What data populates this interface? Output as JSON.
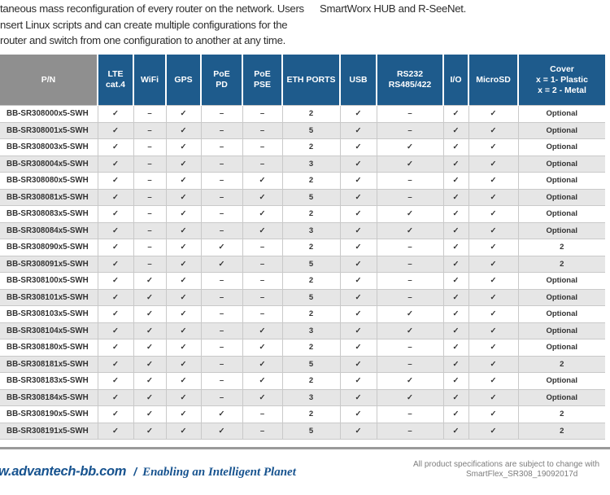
{
  "colors": {
    "header_blue": "#1e5b8c",
    "header_gray": "#8f8f8f",
    "footer_blue": "#17538f",
    "zebra_gray": "#e6e6e6"
  },
  "intro": {
    "left_lines": [
      "taneous mass reconfiguration of every router on the network. Users",
      "nsert Linux scripts and can create multiple configurations for the",
      "router and switch from one configuration to another at any time."
    ],
    "right_line": "SmartWorx HUB and R-SeeNet."
  },
  "spec_table": {
    "columns": [
      "P/N",
      "LTE\ncat.4",
      "WiFi",
      "GPS",
      "PoE\nPD",
      "PoE\nPSE",
      "ETH PORTS",
      "USB",
      "RS232\nRS485/422",
      "I/O",
      "MicroSD",
      "Cover\nx = 1- Plastic\nx = 2 - Metal"
    ],
    "rows": [
      [
        "BB-SR308000x5-SWH",
        "✓",
        "–",
        "✓",
        "–",
        "–",
        "2",
        "✓",
        "–",
        "✓",
        "✓",
        "Optional"
      ],
      [
        "BB-SR308001x5-SWH",
        "✓",
        "–",
        "✓",
        "–",
        "–",
        "5",
        "✓",
        "–",
        "✓",
        "✓",
        "Optional"
      ],
      [
        "BB-SR308003x5-SWH",
        "✓",
        "–",
        "✓",
        "–",
        "–",
        "2",
        "✓",
        "✓",
        "✓",
        "✓",
        "Optional"
      ],
      [
        "BB-SR308004x5-SWH",
        "✓",
        "–",
        "✓",
        "–",
        "–",
        "3",
        "✓",
        "✓",
        "✓",
        "✓",
        "Optional"
      ],
      [
        "BB-SR308080x5-SWH",
        "✓",
        "–",
        "✓",
        "–",
        "✓",
        "2",
        "✓",
        "–",
        "✓",
        "✓",
        "Optional"
      ],
      [
        "BB-SR308081x5-SWH",
        "✓",
        "–",
        "✓",
        "–",
        "✓",
        "5",
        "✓",
        "–",
        "✓",
        "✓",
        "Optional"
      ],
      [
        "BB-SR308083x5-SWH",
        "✓",
        "–",
        "✓",
        "–",
        "✓",
        "2",
        "✓",
        "✓",
        "✓",
        "✓",
        "Optional"
      ],
      [
        "BB-SR308084x5-SWH",
        "✓",
        "–",
        "✓",
        "–",
        "✓",
        "3",
        "✓",
        "✓",
        "✓",
        "✓",
        "Optional"
      ],
      [
        "BB-SR308090x5-SWH",
        "✓",
        "–",
        "✓",
        "✓",
        "–",
        "2",
        "✓",
        "–",
        "✓",
        "✓",
        "2"
      ],
      [
        "BB-SR308091x5-SWH",
        "✓",
        "–",
        "✓",
        "✓",
        "–",
        "5",
        "✓",
        "–",
        "✓",
        "✓",
        "2"
      ],
      [
        "BB-SR308100x5-SWH",
        "✓",
        "✓",
        "✓",
        "–",
        "–",
        "2",
        "✓",
        "–",
        "✓",
        "✓",
        "Optional"
      ],
      [
        "BB-SR308101x5-SWH",
        "✓",
        "✓",
        "✓",
        "–",
        "–",
        "5",
        "✓",
        "–",
        "✓",
        "✓",
        "Optional"
      ],
      [
        "BB-SR308103x5-SWH",
        "✓",
        "✓",
        "✓",
        "–",
        "–",
        "2",
        "✓",
        "✓",
        "✓",
        "✓",
        "Optional"
      ],
      [
        "BB-SR308104x5-SWH",
        "✓",
        "✓",
        "✓",
        "–",
        "✓",
        "3",
        "✓",
        "✓",
        "✓",
        "✓",
        "Optional"
      ],
      [
        "BB-SR308180x5-SWH",
        "✓",
        "✓",
        "✓",
        "–",
        "✓",
        "2",
        "✓",
        "–",
        "✓",
        "✓",
        "Optional"
      ],
      [
        "BB-SR308181x5-SWH",
        "✓",
        "✓",
        "✓",
        "–",
        "✓",
        "5",
        "✓",
        "–",
        "✓",
        "✓",
        "2"
      ],
      [
        "BB-SR308183x5-SWH",
        "✓",
        "✓",
        "✓",
        "–",
        "✓",
        "2",
        "✓",
        "✓",
        "✓",
        "✓",
        "Optional"
      ],
      [
        "BB-SR308184x5-SWH",
        "✓",
        "✓",
        "✓",
        "–",
        "✓",
        "3",
        "✓",
        "✓",
        "✓",
        "✓",
        "Optional"
      ],
      [
        "BB-SR308190x5-SWH",
        "✓",
        "✓",
        "✓",
        "✓",
        "–",
        "2",
        "✓",
        "–",
        "✓",
        "✓",
        "2"
      ],
      [
        "BB-SR308191x5-SWH",
        "✓",
        "✓",
        "✓",
        "✓",
        "–",
        "5",
        "✓",
        "–",
        "✓",
        "✓",
        "2"
      ]
    ]
  },
  "footer": {
    "website": "w.advantech-bb.com",
    "separator": "/",
    "tagline": "Enabling an Intelligent Planet",
    "note_line1": "All product specifications are subject to change with",
    "note_line2": "SmartFlex_SR308_19092017d"
  }
}
